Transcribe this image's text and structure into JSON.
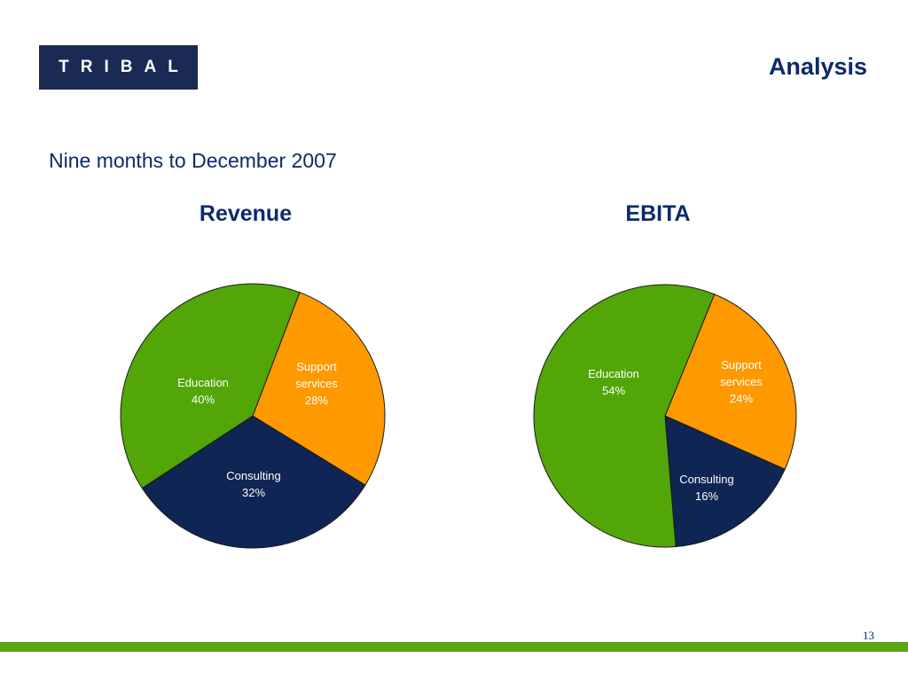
{
  "logo": {
    "text": "TRIBAL",
    "color": "#1b2a55"
  },
  "header": {
    "title": "Analysis"
  },
  "subtitle": "Nine months to December 2007",
  "colors": {
    "education": "#52a608",
    "support": "#ff9900",
    "consulting": "#0f2553",
    "accent_bar": "#5aa60e",
    "title_text": "#0d2a6b"
  },
  "chart_data": [
    {
      "type": "pie",
      "title": "Revenue",
      "slices": [
        {
          "label_lines": [
            "Education",
            "40%"
          ],
          "value": 40,
          "color": "#52a608",
          "text_color": "#ffffff"
        },
        {
          "label_lines": [
            "Support",
            "services",
            "28%"
          ],
          "value": 28,
          "color": "#ff9900",
          "text_color": "#ffffff"
        },
        {
          "label_lines": [
            "Consulting",
            "32%"
          ],
          "value": 32,
          "color": "#0f2553",
          "text_color": "#ffffff"
        }
      ]
    },
    {
      "type": "pie",
      "title": "EBITA",
      "slices": [
        {
          "label_lines": [
            "Education",
            "54%"
          ],
          "value": 54,
          "color": "#52a608",
          "text_color": "#ffffff"
        },
        {
          "label_lines": [
            "Support",
            "services",
            "24%"
          ],
          "value": 24,
          "color": "#ff9900",
          "text_color": "#ffffff"
        },
        {
          "label_lines": [
            "Consulting",
            "16%"
          ],
          "value": 16,
          "color": "#0f2553",
          "text_color": "#ffffff"
        }
      ]
    }
  ],
  "footer": {
    "page_number": "13"
  }
}
